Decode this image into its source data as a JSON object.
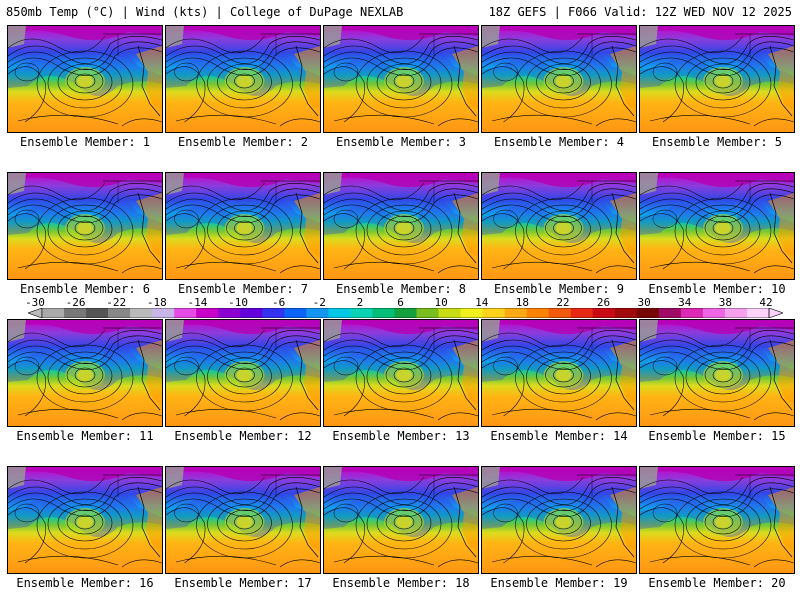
{
  "header": {
    "left": "850mb Temp (°C) | Wind (kts) | College of DuPage NEXLAB",
    "right": "18Z GEFS | F066 Valid: 12Z WED NOV 12 2025"
  },
  "members": [
    "Ensemble Member: 1",
    "Ensemble Member: 2",
    "Ensemble Member: 3",
    "Ensemble Member: 4",
    "Ensemble Member: 5",
    "Ensemble Member: 6",
    "Ensemble Member: 7",
    "Ensemble Member: 8",
    "Ensemble Member: 9",
    "Ensemble Member: 10",
    "Ensemble Member: 11",
    "Ensemble Member: 12",
    "Ensemble Member: 13",
    "Ensemble Member: 14",
    "Ensemble Member: 15",
    "Ensemble Member: 16",
    "Ensemble Member: 17",
    "Ensemble Member: 18",
    "Ensemble Member: 19",
    "Ensemble Member: 20"
  ],
  "colorbar": {
    "labels": [
      "-30",
      "-26",
      "-22",
      "-18",
      "-14",
      "-10",
      "-6",
      "-2",
      "2",
      "6",
      "10",
      "14",
      "18",
      "22",
      "26",
      "30",
      "34",
      "38",
      "42"
    ],
    "colors": [
      "#aaaaaa",
      "#777777",
      "#555555",
      "#888888",
      "#bbbbbb",
      "#c8b4e6",
      "#e64be6",
      "#c800c8",
      "#8c00d2",
      "#6400dc",
      "#3232f0",
      "#0a64f5",
      "#1496f0",
      "#00c8e6",
      "#0ad2b4",
      "#00be78",
      "#14a03c",
      "#78be1e",
      "#c8dc14",
      "#f0f01e",
      "#ffd21e",
      "#ffaa14",
      "#ff8200",
      "#f05a0a",
      "#e62814",
      "#c80a14",
      "#a00a0a",
      "#780505",
      "#a00a64",
      "#dc28b4",
      "#f064e6",
      "#f8a0f0",
      "#ffd2fa"
    ]
  }
}
